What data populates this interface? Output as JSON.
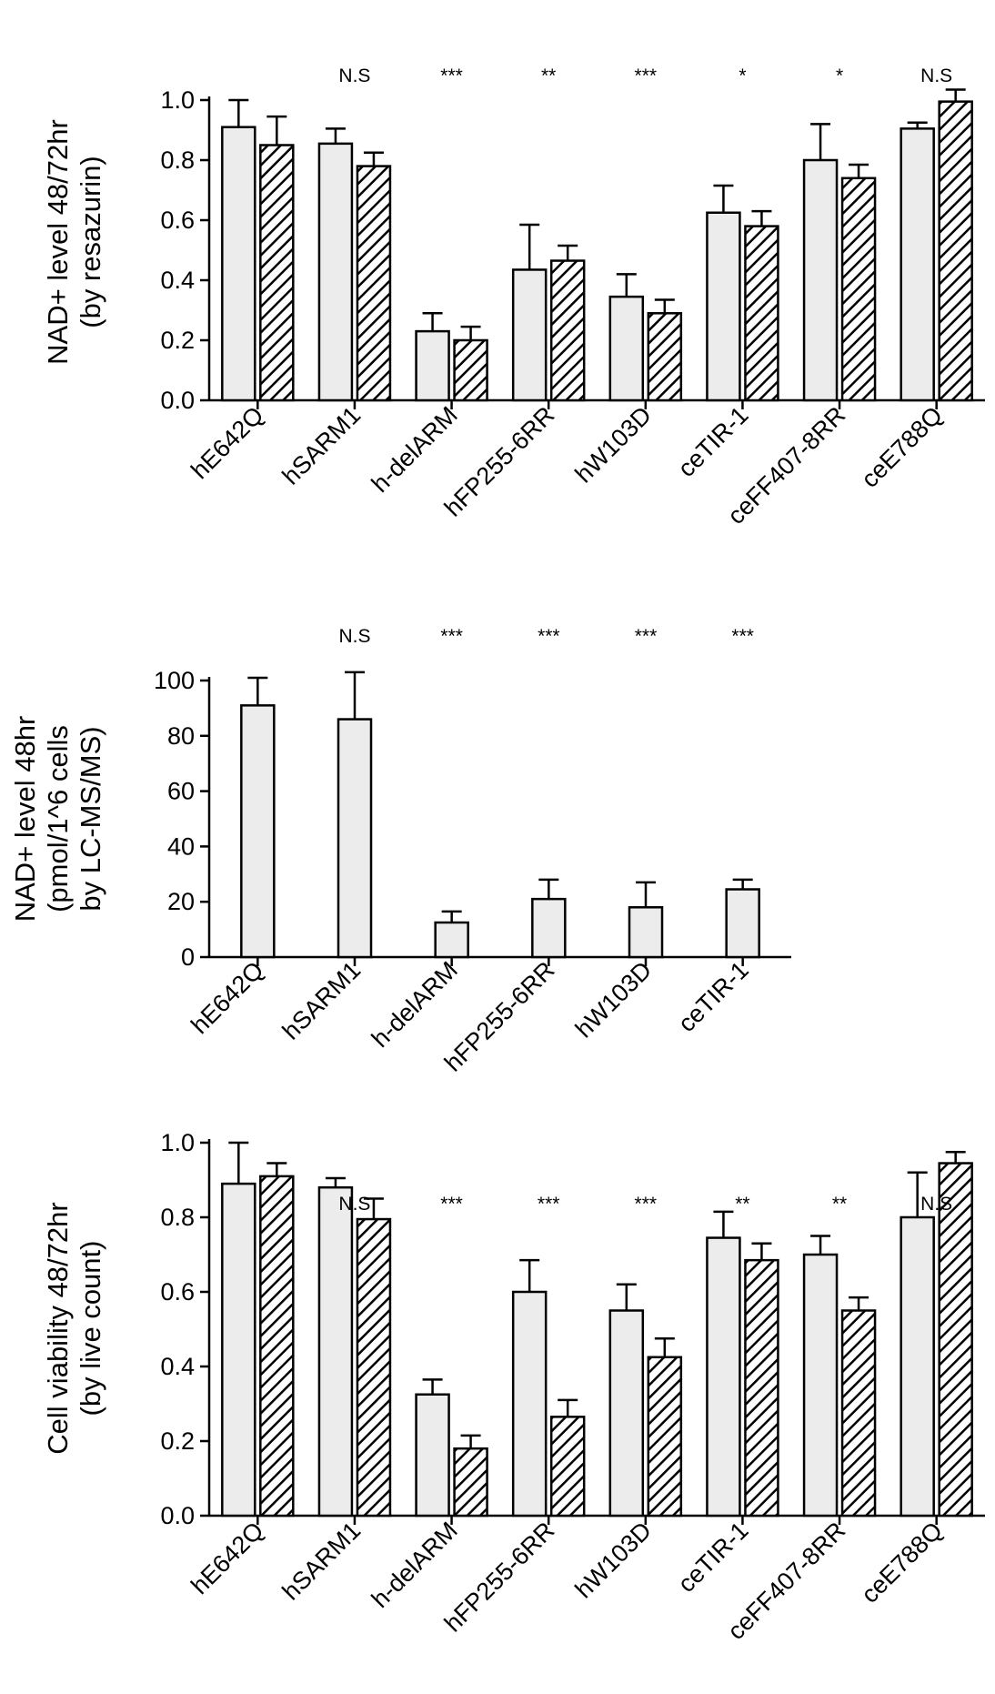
{
  "chart_data": [
    {
      "type": "bar",
      "ylabel": [
        "NAD+ level 48/72hr",
        "(by resazurin)"
      ],
      "ylim": [
        0,
        1.0
      ],
      "yticks": [
        "0.0",
        "0.2",
        "0.4",
        "0.6",
        "0.8",
        "1.0"
      ],
      "categories": [
        "hE642Q",
        "hSARM1",
        "h-delARM",
        "hFP255-6RR",
        "hW103D",
        "ceTIR-1",
        "ceFF407-8RR",
        "ceE788Q"
      ],
      "significance": [
        "",
        "N.S",
        "***",
        "**",
        "***",
        "*",
        "*",
        "N.S"
      ],
      "series": [
        {
          "pattern": "solid",
          "values": [
            0.91,
            0.855,
            0.23,
            0.435,
            0.345,
            0.625,
            0.8,
            0.905
          ],
          "errors": [
            0.09,
            0.05,
            0.06,
            0.15,
            0.075,
            0.09,
            0.12,
            0.02
          ]
        },
        {
          "pattern": "hatched",
          "values": [
            0.85,
            0.78,
            0.2,
            0.465,
            0.29,
            0.58,
            0.74,
            0.995
          ],
          "errors": [
            0.095,
            0.045,
            0.045,
            0.05,
            0.045,
            0.05,
            0.045,
            0.04
          ]
        }
      ],
      "colors": {
        "bar_fill": "#ececec",
        "stroke": "#000000"
      }
    },
    {
      "type": "bar",
      "ylabel": [
        "NAD+ level 48hr",
        "(pmol/1^6 cells",
        "by LC-MS/MS)"
      ],
      "ylim": [
        0,
        100
      ],
      "yticks": [
        "0",
        "20",
        "40",
        "60",
        "80",
        "100"
      ],
      "categories": [
        "hE642Q",
        "hSARM1",
        "h-delARM",
        "hFP255-6RR",
        "hW103D",
        "ceTIR-1"
      ],
      "significance": [
        "",
        "N.S",
        "***",
        "***",
        "***",
        "***"
      ],
      "series": [
        {
          "pattern": "solid",
          "values": [
            91,
            86,
            12.5,
            21,
            18,
            24.5
          ],
          "errors": [
            10,
            17,
            4,
            7,
            9,
            3.5
          ]
        }
      ],
      "colors": {
        "bar_fill": "#ececec",
        "stroke": "#000000"
      }
    },
    {
      "type": "bar",
      "ylabel": [
        "Cell viability 48/72hr",
        "(by live count)"
      ],
      "ylim": [
        0,
        1.0
      ],
      "yticks": [
        "0.0",
        "0.2",
        "0.4",
        "0.6",
        "0.8",
        "1.0"
      ],
      "categories": [
        "hE642Q",
        "hSARM1",
        "h-delARM",
        "hFP255-6RR",
        "hW103D",
        "ceTIR-1",
        "ceFF407-8RR",
        "ceE788Q"
      ],
      "significance": [
        "",
        "N.S",
        "***",
        "***",
        "***",
        "**",
        "**",
        "N.S"
      ],
      "series": [
        {
          "pattern": "solid",
          "values": [
            0.89,
            0.88,
            0.325,
            0.6,
            0.55,
            0.745,
            0.7,
            0.8
          ],
          "errors": [
            0.11,
            0.025,
            0.04,
            0.085,
            0.07,
            0.07,
            0.05,
            0.12
          ]
        },
        {
          "pattern": "hatched",
          "values": [
            0.91,
            0.795,
            0.18,
            0.265,
            0.425,
            0.685,
            0.55,
            0.945
          ],
          "errors": [
            0.035,
            0.055,
            0.035,
            0.045,
            0.05,
            0.045,
            0.035,
            0.03
          ]
        }
      ],
      "colors": {
        "bar_fill": "#ececec",
        "stroke": "#000000"
      }
    }
  ]
}
